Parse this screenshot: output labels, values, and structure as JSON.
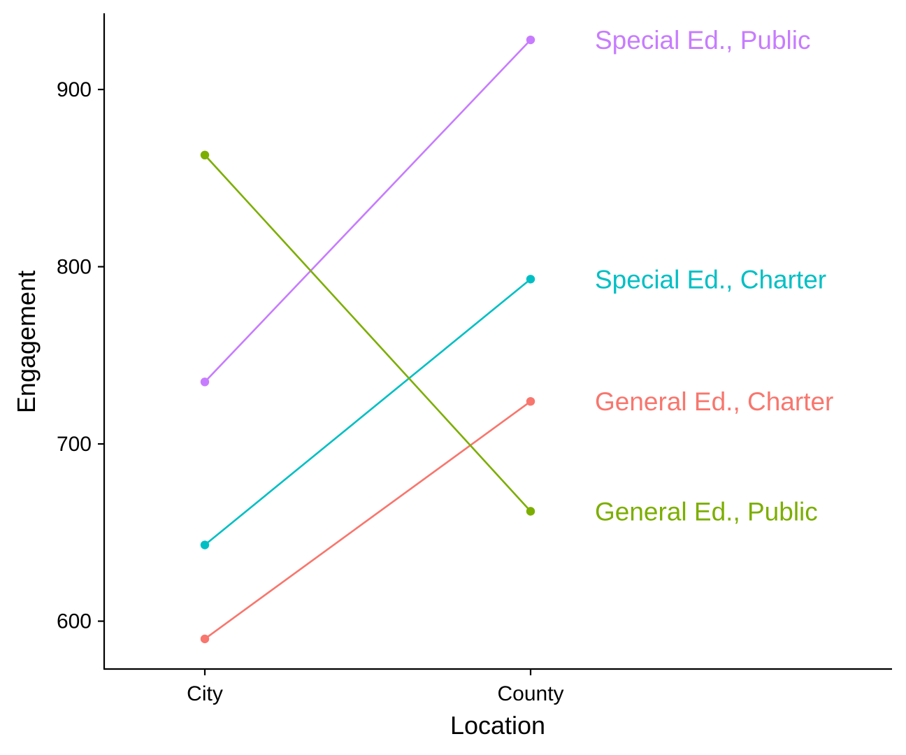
{
  "chart_data": {
    "type": "line",
    "categories": [
      "City",
      "County"
    ],
    "xlabel": "Location",
    "ylabel": "Engagement",
    "ylim": [
      573,
      943
    ],
    "yticks": [
      600,
      700,
      800,
      900
    ],
    "grid": false,
    "legend": "direct labels at right of line ends",
    "series": [
      {
        "name": "Special Ed., Public",
        "color": "#C77CFF",
        "values": [
          735,
          928
        ]
      },
      {
        "name": "Special Ed., Charter",
        "color": "#00BFC4",
        "values": [
          643,
          793
        ]
      },
      {
        "name": "General Ed., Charter",
        "color": "#F8766D",
        "values": [
          590,
          724
        ]
      },
      {
        "name": "General Ed., Public",
        "color": "#7CAE00",
        "values": [
          863,
          662
        ]
      }
    ]
  }
}
